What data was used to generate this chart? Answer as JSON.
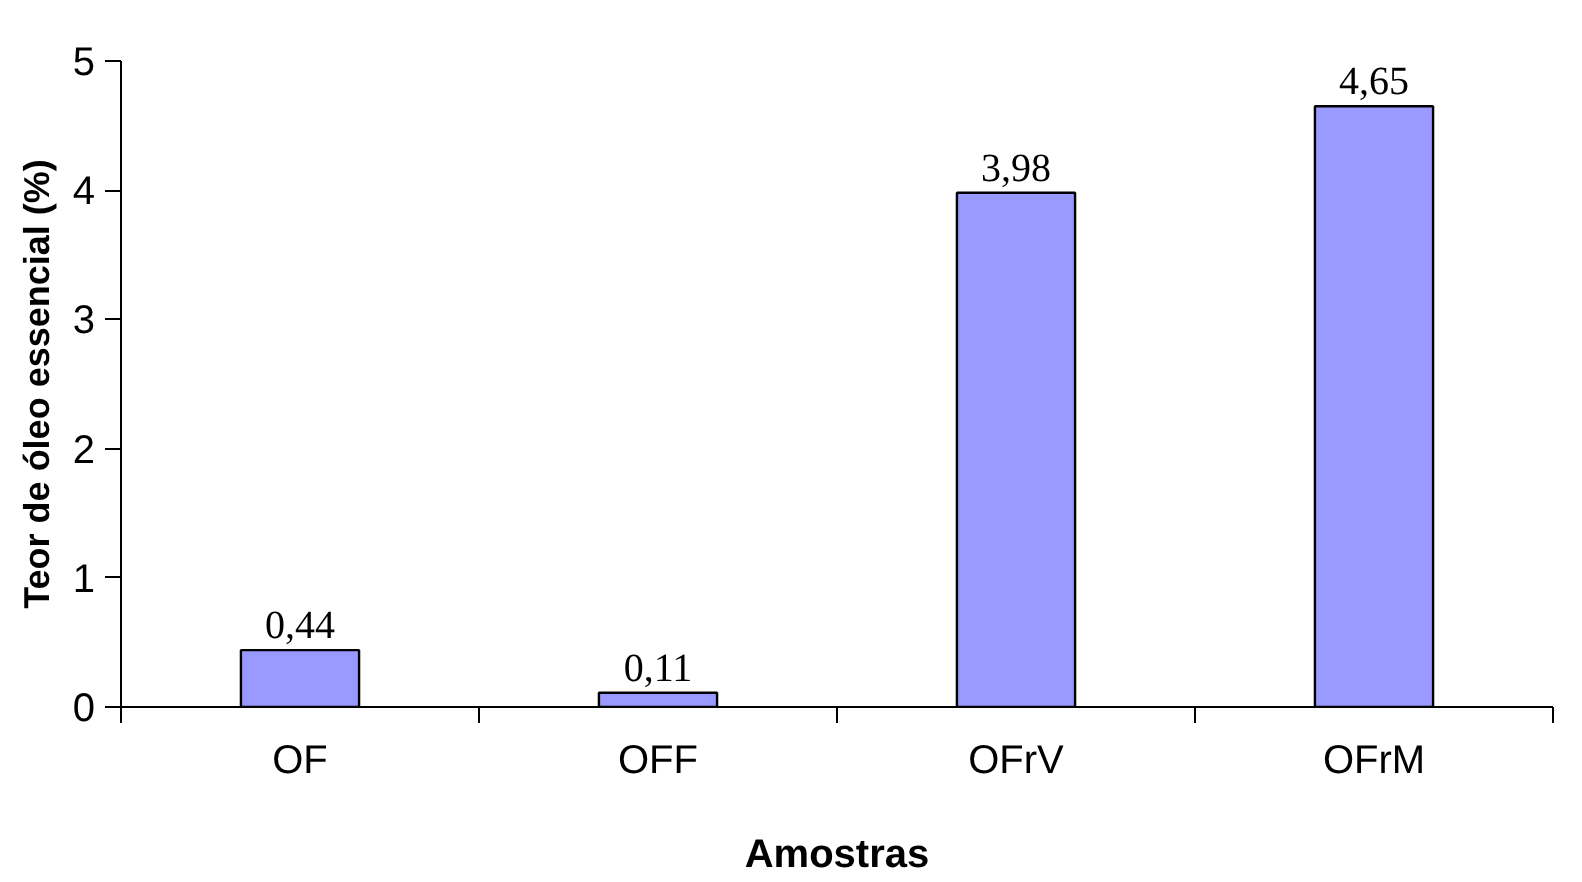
{
  "chart_data": {
    "type": "bar",
    "xlabel": "Amostras",
    "ylabel": "Teor de óleo essencial (%)",
    "categories": [
      "OF",
      "OFF",
      "OFrV",
      "OFrM"
    ],
    "values": [
      0.44,
      0.11,
      3.98,
      4.65
    ],
    "value_labels": [
      "0,44",
      "0,11",
      "3,98",
      "4,65"
    ],
    "color": "#9999ff",
    "ylim": [
      0,
      5
    ],
    "yticks": [
      0,
      1,
      2,
      3,
      4,
      5
    ],
    "grid": false
  }
}
